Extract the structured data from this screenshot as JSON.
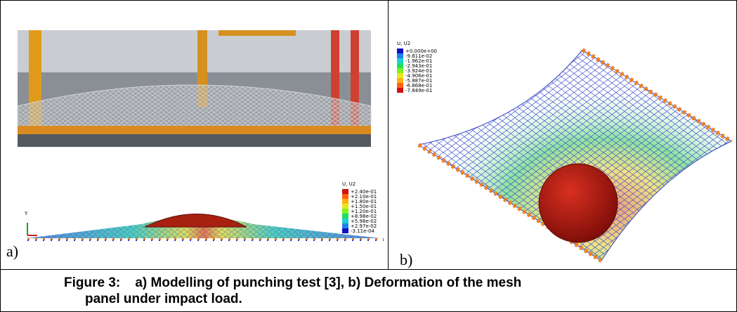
{
  "figure_a": {
    "label": "a)",
    "legend": {
      "title": "U, U2",
      "labels": [
        "+2.40e-01",
        "+2.10e-01",
        "+1.80e-01",
        "+1.50e-01",
        "+1.20e-01",
        "+8.98e-02",
        "+5.98e-02",
        "+2.97e-02",
        "-3.11e-04"
      ]
    },
    "axis_label": "Y"
  },
  "figure_b": {
    "label": "b)",
    "legend": {
      "title": "U, U2",
      "labels": [
        "+0.000e+00",
        "-9.811e-02",
        "-1.962e-01",
        "-2.943e-01",
        "-3.924e-01",
        "-4.906e-01",
        "-5.887e-01",
        "-6.868e-01",
        "-7.849e-01"
      ]
    }
  },
  "caption": "Figure 3:    a) Modelling of punching test [3], b) Deformation of the mesh panel under impact load."
}
